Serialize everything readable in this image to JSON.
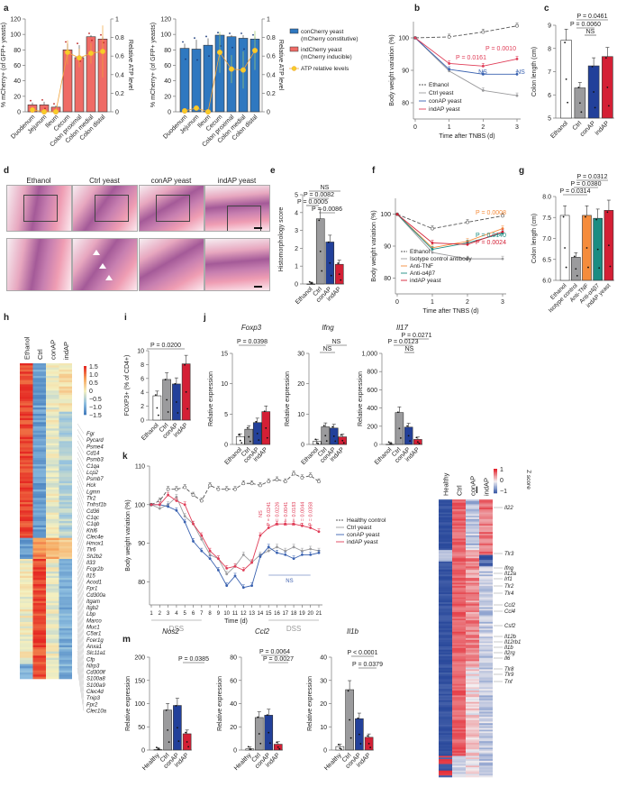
{
  "panel_letters": [
    "a",
    "b",
    "c",
    "d",
    "e",
    "f",
    "g",
    "h",
    "i",
    "j",
    "k",
    "l",
    "m"
  ],
  "colors": {
    "ethanol": "#ffffff",
    "ctrl": "#9b9b9d",
    "conAP": "#22409a",
    "indAP": "#d41f35",
    "conCherry": "#2f78c0",
    "indCherry": "#ef6b66",
    "atp": "#f7cd28",
    "antiTNF": "#f58c3c",
    "antiA4b7": "#1b8c82",
    "healthy": "#ffffff",
    "ns_blue": "#3d5fae"
  },
  "chart_data": [
    {
      "id": "a-left",
      "type": "bar",
      "categories": [
        "Duodenum",
        "Jejunum",
        "Ileum",
        "Cecum",
        "Colon proximal",
        "Colon medial",
        "Colon distal"
      ],
      "series": [
        {
          "name": "indCherry yeast (mCherry inducible)",
          "values": [
            9,
            9,
            6,
            80,
            70,
            97,
            94
          ],
          "errors": [
            3,
            4,
            2,
            8,
            16,
            2,
            3
          ]
        },
        {
          "name": "ATP relative levels",
          "axis": "right",
          "values": [
            0.02,
            0,
            0,
            0.64,
            0.58,
            0.63,
            0.65
          ],
          "errors": [
            0.01,
            0,
            0,
            0.13,
            0.1,
            0.11,
            0.28
          ]
        }
      ],
      "ylabel": "% mCherry+ (of GFP+ yeasts)",
      "ylabel2": "Relative ATP level",
      "ylim": [
        0,
        120
      ],
      "yticks": [
        0,
        20,
        40,
        60,
        80,
        100,
        120
      ],
      "ylim2": [
        0,
        1.0
      ],
      "yticks2": [
        "0",
        "0.2",
        "0.4",
        "0.6",
        "0.8",
        "1.0"
      ]
    },
    {
      "id": "a-right",
      "type": "bar",
      "categories": [
        "Duodenum",
        "Jejunum",
        "Ileum",
        "Cecum",
        "Colon proximal",
        "Colon medial",
        "Colon distal"
      ],
      "series": [
        {
          "name": "conCherry yeast (mCherry constitutive)",
          "values": [
            82,
            81,
            86,
            99,
            97,
            95,
            94
          ],
          "errors": [
            6,
            12,
            9,
            1,
            2,
            4,
            3
          ]
        },
        {
          "name": "ATP relative levels",
          "axis": "right",
          "values": [
            0.01,
            0.04,
            0,
            0.64,
            0.46,
            0.45,
            0.66
          ],
          "errors": [
            0,
            0.02,
            0,
            0.22,
            0.15,
            0.2,
            0.21
          ]
        }
      ],
      "ylabel": "% mCherry+ (of GFP+ yeasts)",
      "ylabel2": "Relative ATP level",
      "ylim": [
        0,
        120
      ],
      "yticks": [
        0,
        20,
        40,
        60,
        80,
        100,
        120
      ],
      "ylim2": [
        0,
        1.0
      ],
      "yticks2": [
        "0",
        "0.2",
        "0.4",
        "0.6",
        "0.8",
        "1.0"
      ],
      "legend": [
        "conCherry yeast",
        "(mCherry constitutive)",
        "indCherry yeast",
        "(mCherry inducible)",
        "ATP relative levels"
      ]
    },
    {
      "id": "b",
      "type": "line",
      "x": [
        0,
        1,
        2,
        3
      ],
      "series": [
        {
          "name": "Ethanol",
          "values": [
            100,
            100.3,
            101.8,
            103.7
          ],
          "dashed": true
        },
        {
          "name": "Ctrl yeast",
          "values": [
            100,
            89.8,
            83.8,
            82.2
          ]
        },
        {
          "name": "conAP yeast",
          "values": [
            100,
            90.3,
            88.8,
            88.8
          ]
        },
        {
          "name": "indAP yeast",
          "values": [
            100,
            92.1,
            91.3,
            93.5
          ]
        }
      ],
      "annotations": [
        "P = 0.0161",
        "P = 0.0010",
        "NS",
        "NS"
      ],
      "xlabel": "Time after TNBS (d)",
      "ylabel": "Body weight variation (%)",
      "ylim": [
        75,
        105
      ],
      "yticks": [
        80,
        90,
        100
      ]
    },
    {
      "id": "c",
      "type": "bar",
      "categories": [
        "Ethanol",
        "Ctrl",
        "conAP",
        "indAP"
      ],
      "values": [
        8.35,
        6.3,
        7.25,
        7.65
      ],
      "ylabel": "Colon length (cm)",
      "ylim": [
        5,
        9
      ],
      "yticks": [
        5,
        6,
        7,
        8,
        9
      ],
      "annotations": [
        "P = 0.0461",
        "P = 0.0060",
        "NS"
      ]
    },
    {
      "id": "e",
      "type": "bar",
      "categories": [
        "Ethanol",
        "Ctrl",
        "conAP",
        "indAP"
      ],
      "values": [
        0,
        3.65,
        2.35,
        1.1
      ],
      "ylabel": "Histomorphology score",
      "ylim": [
        0,
        5
      ],
      "yticks": [
        0,
        1,
        2,
        3,
        4,
        5
      ],
      "annotations": [
        "NS",
        "P = 0.0082",
        "P = 0.0005",
        "P = 0.0086"
      ]
    },
    {
      "id": "f",
      "type": "line",
      "x": [
        0,
        1,
        2,
        3
      ],
      "series": [
        {
          "name": "Ethanol",
          "values": [
            100,
            95.5,
            97.5,
            99.5
          ],
          "dashed": true
        },
        {
          "name": "Isotype control antibody",
          "values": [
            100,
            88,
            86,
            86
          ]
        },
        {
          "name": "Anti-TNF",
          "values": [
            100,
            89.5,
            91.5,
            95.5
          ]
        },
        {
          "name": "Anti-α4β7",
          "values": [
            100,
            89,
            91,
            94
          ]
        },
        {
          "name": "indAP yeast",
          "values": [
            100,
            91,
            90.5,
            94.5
          ]
        }
      ],
      "annotations": [
        "P = 0.0008",
        "P = 0.0140",
        "P = 0.0024"
      ],
      "xlabel": "Time after TNBS (d)",
      "ylabel": "Body weight variation (%)",
      "ylim": [
        75,
        105
      ],
      "yticks": [
        80,
        90,
        100
      ]
    },
    {
      "id": "g",
      "type": "bar",
      "categories": [
        "Ethanol",
        "Isotype control",
        "Anti-TNF",
        "Anti-α4β7",
        "indAP yeast"
      ],
      "values": [
        7.55,
        6.55,
        7.55,
        7.48,
        7.67
      ],
      "ylabel": "Colon length (cm)",
      "ylim": [
        6.0,
        8.0
      ],
      "yticks": [
        "6.0",
        "6.5",
        "7.0",
        "7.5",
        "8.0"
      ],
      "annotations": [
        "P = 0.0312",
        "P = 0.0380",
        "P = 0.0314"
      ]
    },
    {
      "id": "h",
      "type": "heatmap",
      "columns": [
        "Ethanol",
        "Ctrl",
        "conAP",
        "indAP"
      ],
      "scale": [
        "1.5",
        "1.0",
        "0.5",
        "0",
        "−0.5",
        "−1.0",
        "−1.5"
      ],
      "genes": [
        "Fgr",
        "Pycard",
        "Psme4",
        "Cd14",
        "Psmb3",
        "C1qa",
        "Lcp2",
        "Psmb7",
        "Hck",
        "Lgmn",
        "Tlr2",
        "Tnfrsf1b",
        "Cd36",
        "C1qc",
        "C1qb",
        "Khl6",
        "Clec4e",
        "Hmox1",
        "Tlr6",
        "Sh2b2",
        "Il33",
        "Fcgr2b",
        "Il15",
        "Acod1",
        "Fpr1",
        "Cd300a",
        "Itgam",
        "Itgb2",
        "Lbp",
        "Marco",
        "Muc1",
        "C5ar1",
        "Fcer1g",
        "Anxa1",
        "Slc11a1",
        "Cfp",
        "Nlrp3",
        "Cd300lf",
        "S100a8",
        "S100a9",
        "Clec4d",
        "Tnip3",
        "Fpr2",
        "Clec10a"
      ]
    },
    {
      "id": "i",
      "type": "bar",
      "categories": [
        "Ethanol",
        "Ctrl",
        "conAP",
        "indAP"
      ],
      "values": [
        3.5,
        5.85,
        5.2,
        8.1
      ],
      "ylabel": "FOXP3+ (% of CD4+)",
      "ylim": [
        0,
        10
      ],
      "yticks": [
        0,
        2,
        4,
        6,
        8,
        10
      ],
      "annotations": [
        "P = 0.0200"
      ]
    },
    {
      "id": "j-foxp3",
      "type": "bar",
      "title": "Foxp3",
      "categories": [
        "Ethanol",
        "Ctrl",
        "conAP",
        "indAP"
      ],
      "values": [
        1.3,
        2.5,
        3.6,
        5.4
      ],
      "ylabel": "Relative expression",
      "ylim": [
        0,
        15
      ],
      "yticks": [
        0,
        5,
        10,
        15
      ],
      "annotations": [
        "P = 0.0398"
      ]
    },
    {
      "id": "j-ifng",
      "type": "bar",
      "title": "Ifng",
      "categories": [
        "Ethanol",
        "Ctrl",
        "conAP",
        "indAP"
      ],
      "values": [
        1,
        5.8,
        5.4,
        2.5
      ],
      "ylabel": "Relative expression",
      "ylim": [
        0,
        30
      ],
      "yticks": [
        0,
        10,
        20,
        30
      ],
      "annotations": [
        "NS",
        "NS"
      ]
    },
    {
      "id": "j-il17",
      "type": "bar",
      "title": "Il17",
      "categories": [
        "Ethanol",
        "Ctrl",
        "conAP",
        "indAP"
      ],
      "values": [
        2,
        350,
        190,
        55
      ],
      "ylabel": "Relative expression",
      "ylim": [
        0,
        1000
      ],
      "yticks": [
        "0",
        "200",
        "400",
        "600",
        "800",
        "1,000"
      ],
      "annotations": [
        "P = 0.0271",
        "P = 0.0123",
        "NS"
      ]
    },
    {
      "id": "k",
      "type": "line",
      "x": [
        1,
        2,
        3,
        4,
        5,
        6,
        7,
        8,
        9,
        10,
        11,
        12,
        13,
        14,
        15,
        16,
        17,
        18,
        19,
        20,
        21
      ],
      "series": [
        {
          "name": "Healthy control",
          "values": [
            100,
            101,
            104,
            104,
            104.5,
            102.5,
            101,
            105,
            104,
            104,
            104,
            105.5,
            105.5,
            105,
            106,
            106.5,
            106,
            108,
            107,
            107.5,
            106
          ],
          "dashed": true
        },
        {
          "name": "Ctrl yeast",
          "values": [
            100,
            99,
            100,
            102,
            97,
            95,
            91,
            87,
            86,
            82,
            84,
            87,
            85,
            87,
            88,
            89,
            88,
            89,
            88,
            88.5,
            88
          ]
        },
        {
          "name": "conAP yeast",
          "values": [
            100,
            100,
            99.5,
            98.5,
            95.5,
            90.5,
            88,
            86,
            83,
            79,
            81.5,
            78.5,
            79,
            86.5,
            89,
            87.5,
            87,
            86,
            87,
            87,
            87.5
          ]
        },
        {
          "name": "indAP yeast",
          "values": [
            100,
            100,
            102.5,
            101,
            100,
            95,
            92,
            88,
            86,
            83.5,
            84,
            83,
            85,
            92,
            94,
            95,
            95,
            95,
            94.5,
            94,
            93
          ]
        }
      ],
      "annotations": [
        "NS",
        "P = 0.0241",
        "P = 0.0226",
        "P = 0.0041",
        "P = 0.0183",
        "P = 0.0044",
        "P = 0.0358",
        "NS",
        "NS"
      ],
      "xlabel": "Time (d)",
      "ylabel": "Body weight variation (%)",
      "ylim": [
        74,
        110
      ],
      "yticks": [
        80,
        90,
        100,
        110
      ],
      "periods": [
        {
          "label": "DSS",
          "from": 1,
          "to": 7
        },
        {
          "label": "DSS",
          "from": 15,
          "to": 21
        }
      ]
    },
    {
      "id": "l",
      "type": "heatmap",
      "columns": [
        "Healthy",
        "Ctrl",
        "conAP",
        "indAP"
      ],
      "scale": [
        "1",
        "0",
        "−1"
      ],
      "scale_label": "Z score",
      "genes": [
        "Il22",
        "Tlr3",
        "Ifng",
        "Il12a",
        "Irf1",
        "Tlr2",
        "Tlr4",
        "Ccl2",
        "Ccl4",
        "Csf2",
        "Il12b",
        "Il12rb1",
        "Il1b",
        "Il2rg",
        "Il6",
        "Tlr8",
        "Tlr9",
        "Tnf"
      ]
    },
    {
      "id": "m-nos2",
      "type": "bar",
      "title": "Nos2",
      "categories": [
        "Healthy",
        "Ctrl",
        "conAP",
        "indAP"
      ],
      "values": [
        1,
        86,
        96,
        35
      ],
      "ylabel": "Relative expression",
      "ylim": [
        0,
        200
      ],
      "yticks": [
        0,
        50,
        100,
        150,
        200
      ],
      "annotations": [
        "P = 0.0385"
      ]
    },
    {
      "id": "m-ccl2",
      "type": "bar",
      "title": "Ccl2",
      "categories": [
        "Healthy",
        "Ctrl",
        "conAP",
        "indAP"
      ],
      "values": [
        1,
        28,
        30,
        5
      ],
      "ylabel": "Relative expression",
      "ylim": [
        0,
        80
      ],
      "yticks": [
        0,
        20,
        40,
        60,
        80
      ],
      "annotations": [
        "P = 0.0064",
        "P = 0.0027"
      ]
    },
    {
      "id": "m-il1b",
      "type": "bar",
      "title": "Il1b",
      "categories": [
        "Healthy",
        "Ctrl",
        "conAP",
        "indAP"
      ],
      "values": [
        1.5,
        26,
        13.5,
        5.5
      ],
      "ylabel": "Relative expression",
      "ylim": [
        0,
        40
      ],
      "yticks": [
        0,
        10,
        20,
        30,
        40
      ],
      "annotations": [
        "P < 0.0001",
        "P = 0.0379"
      ]
    }
  ],
  "histology": {
    "columns": [
      "Ethanol",
      "Ctrl yeast",
      "conAP yeast",
      "indAP yeast"
    ]
  }
}
